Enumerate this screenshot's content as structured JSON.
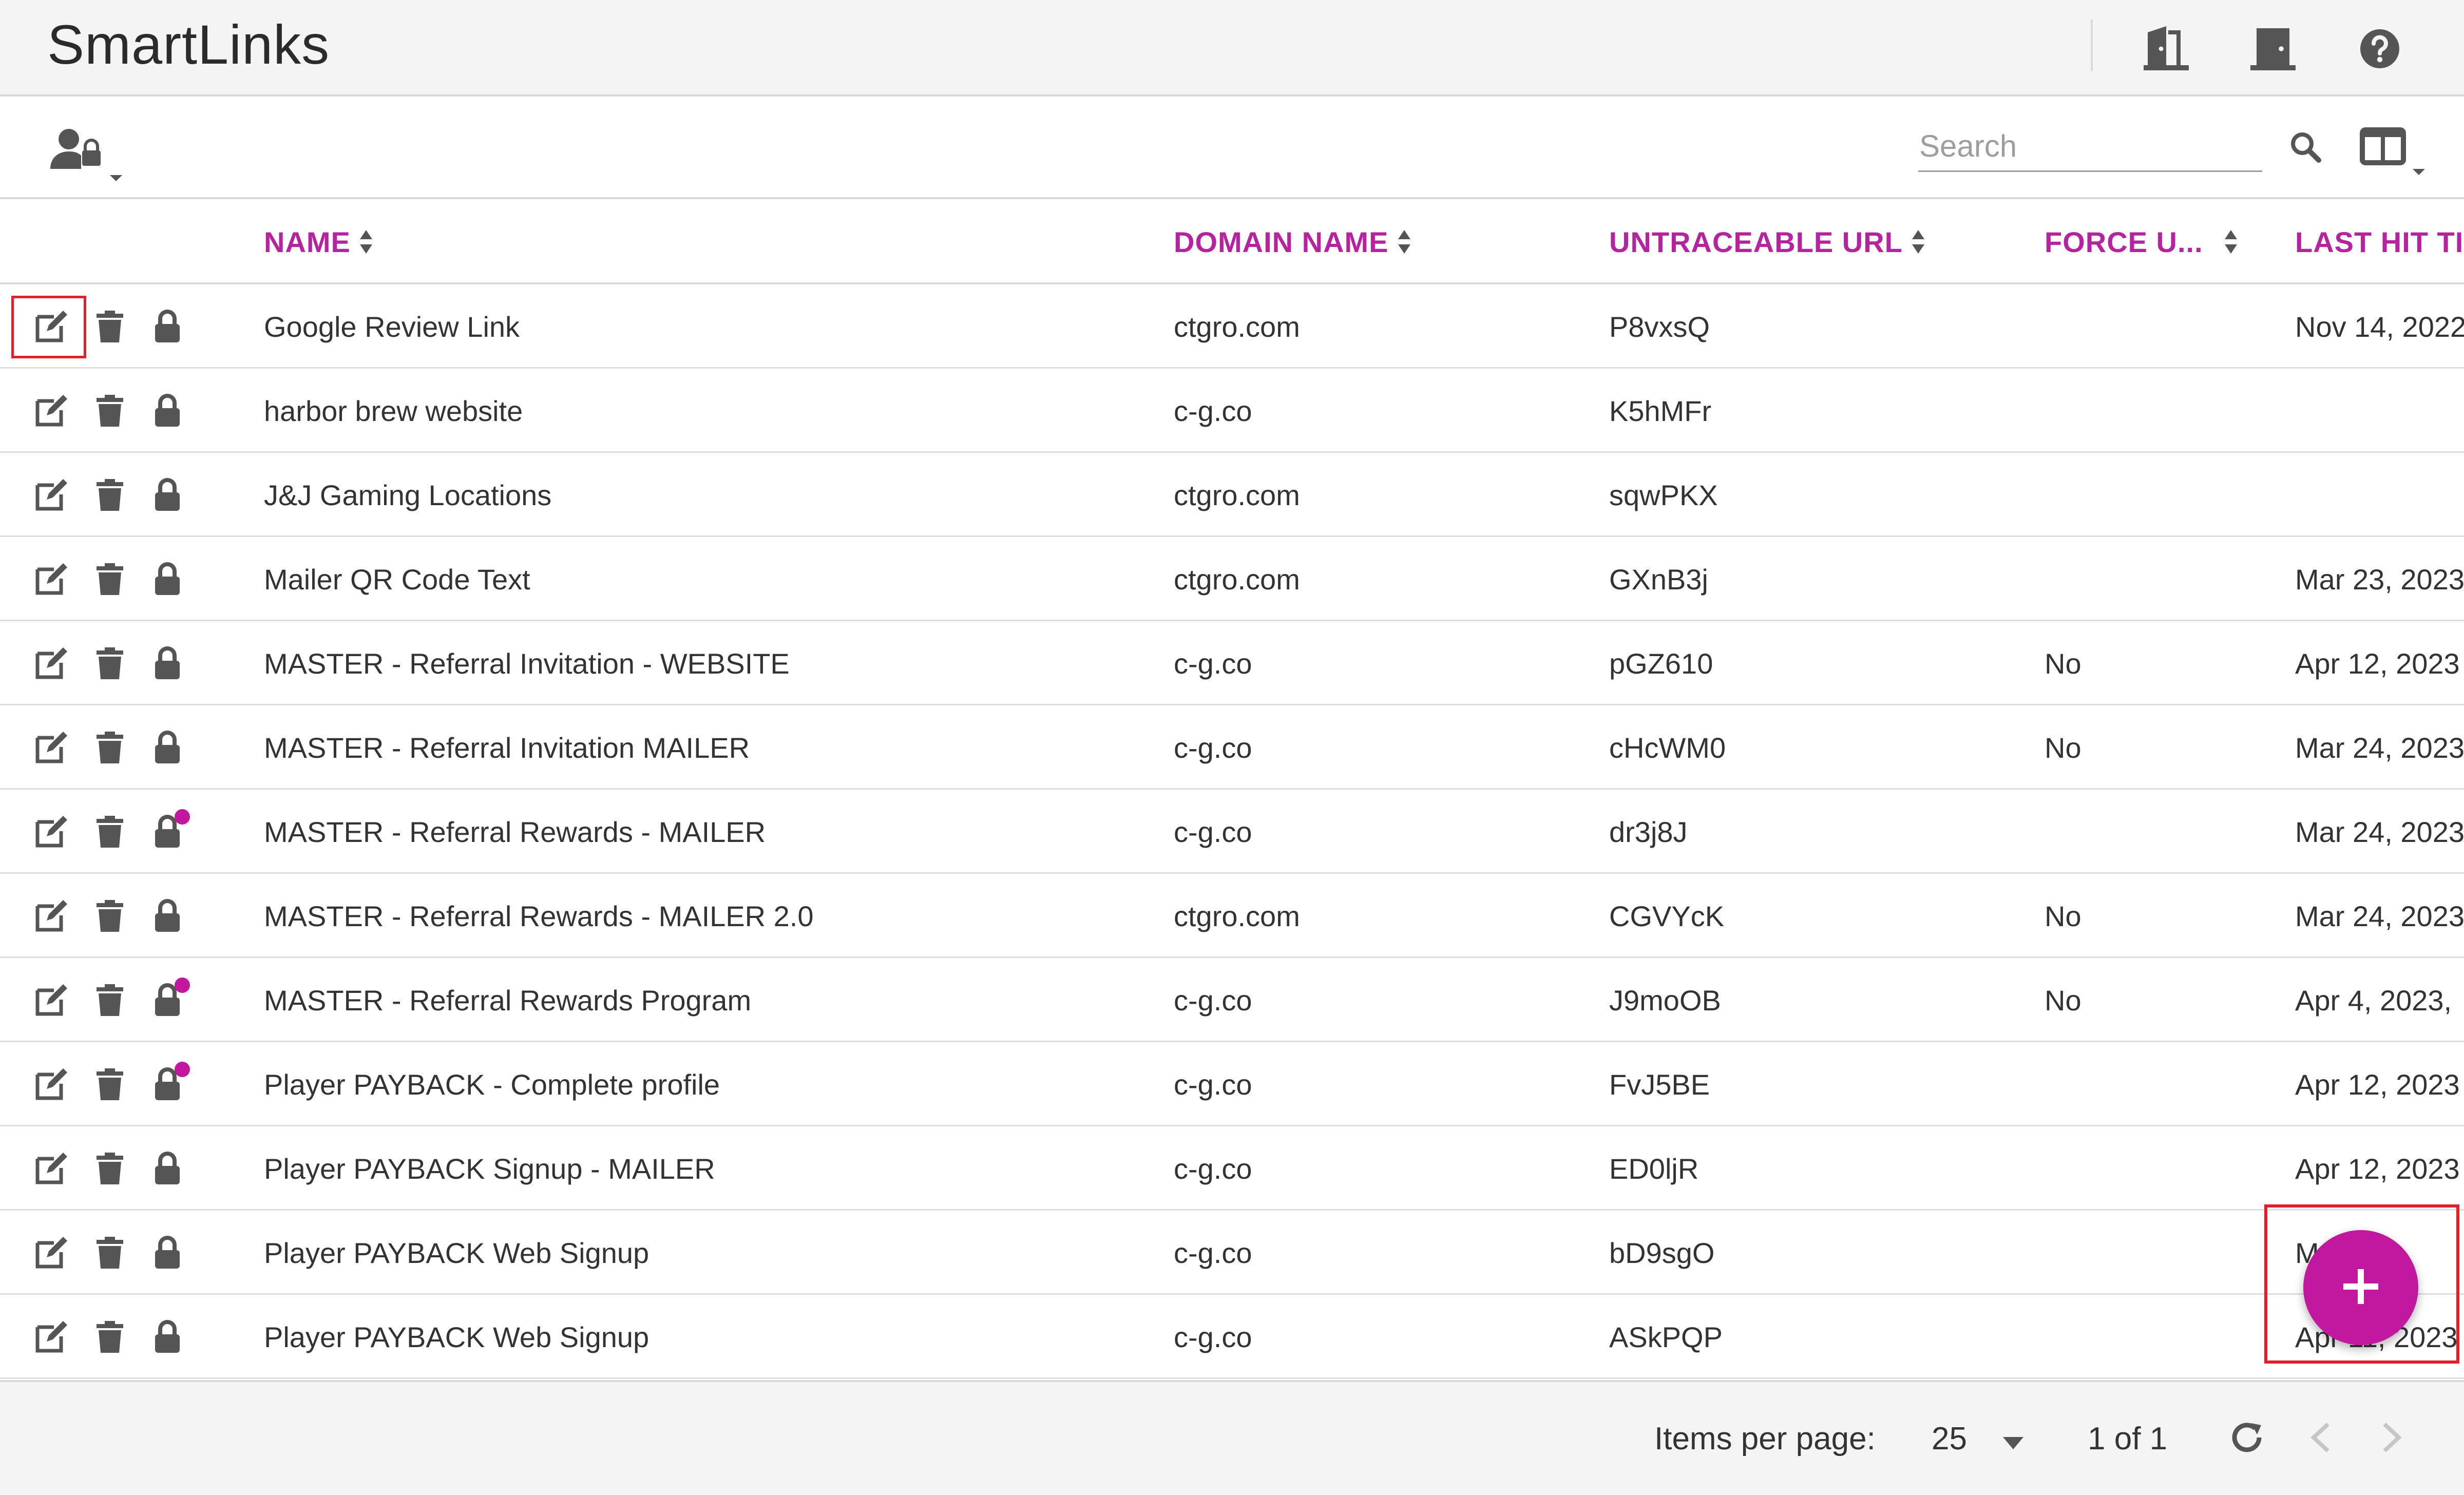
{
  "header": {
    "title": "SmartLinks",
    "icons": [
      "door-open-icon",
      "door-closed-icon",
      "help-icon"
    ]
  },
  "toolbar": {
    "user_lock_icon": "user-lock-icon",
    "search_placeholder": "Search",
    "search_value": "",
    "columns_icon": "columns-icon"
  },
  "table": {
    "columns": [
      "NAME",
      "DOMAIN NAME",
      "UNTRACEABLE URL",
      "FORCE U...",
      "LAST HIT TI"
    ],
    "rows": [
      {
        "name": "Google Review Link",
        "domain": "ctgro.com",
        "url": "P8vxsQ",
        "force": "",
        "last_hit": "Nov 14, 2022",
        "dot": false
      },
      {
        "name": "harbor brew website",
        "domain": "c-g.co",
        "url": "K5hMFr",
        "force": "",
        "last_hit": "",
        "dot": false
      },
      {
        "name": "J&J Gaming Locations",
        "domain": "ctgro.com",
        "url": "sqwPKX",
        "force": "",
        "last_hit": "",
        "dot": false
      },
      {
        "name": "Mailer QR Code Text",
        "domain": "ctgro.com",
        "url": "GXnB3j",
        "force": "",
        "last_hit": "Mar 23, 2023",
        "dot": false
      },
      {
        "name": "MASTER - Referral Invitation - WEBSITE",
        "domain": "c-g.co",
        "url": "pGZ610",
        "force": "No",
        "last_hit": "Apr 12, 2023",
        "dot": false
      },
      {
        "name": "MASTER - Referral Invitation MAILER",
        "domain": "c-g.co",
        "url": "cHcWM0",
        "force": "No",
        "last_hit": "Mar 24, 2023",
        "dot": false
      },
      {
        "name": "MASTER - Referral Rewards - MAILER",
        "domain": "c-g.co",
        "url": "dr3j8J",
        "force": "",
        "last_hit": "Mar 24, 2023",
        "dot": true
      },
      {
        "name": "MASTER - Referral Rewards - MAILER 2.0",
        "domain": "ctgro.com",
        "url": "CGVYcK",
        "force": "No",
        "last_hit": "Mar 24, 2023",
        "dot": false
      },
      {
        "name": "MASTER - Referral Rewards Program",
        "domain": "c-g.co",
        "url": "J9moOB",
        "force": "No",
        "last_hit": "Apr 4, 2023,",
        "dot": true
      },
      {
        "name": "Player PAYBACK - Complete profile",
        "domain": "c-g.co",
        "url": "FvJ5BE",
        "force": "",
        "last_hit": "Apr 12, 2023",
        "dot": true
      },
      {
        "name": "Player PAYBACK Signup - MAILER",
        "domain": "c-g.co",
        "url": "ED0ljR",
        "force": "",
        "last_hit": "Apr 12, 2023",
        "dot": false
      },
      {
        "name": "Player PAYBACK Web Signup",
        "domain": "c-g.co",
        "url": "bD9sgO",
        "force": "",
        "last_hit": "M        202",
        "dot": false
      },
      {
        "name": "Player PAYBACK Web Signup",
        "domain": "c-g.co",
        "url": "ASkPQP",
        "force": "",
        "last_hit": "Apr 11, 2023",
        "dot": false
      }
    ]
  },
  "footer": {
    "items_per_page_label": "Items per page:",
    "items_per_page_value": "25",
    "range": "1 of 1"
  },
  "fab": {
    "icon": "plus-icon"
  },
  "colors": {
    "accent": "#c2189f",
    "highlight": "#e0202a"
  }
}
